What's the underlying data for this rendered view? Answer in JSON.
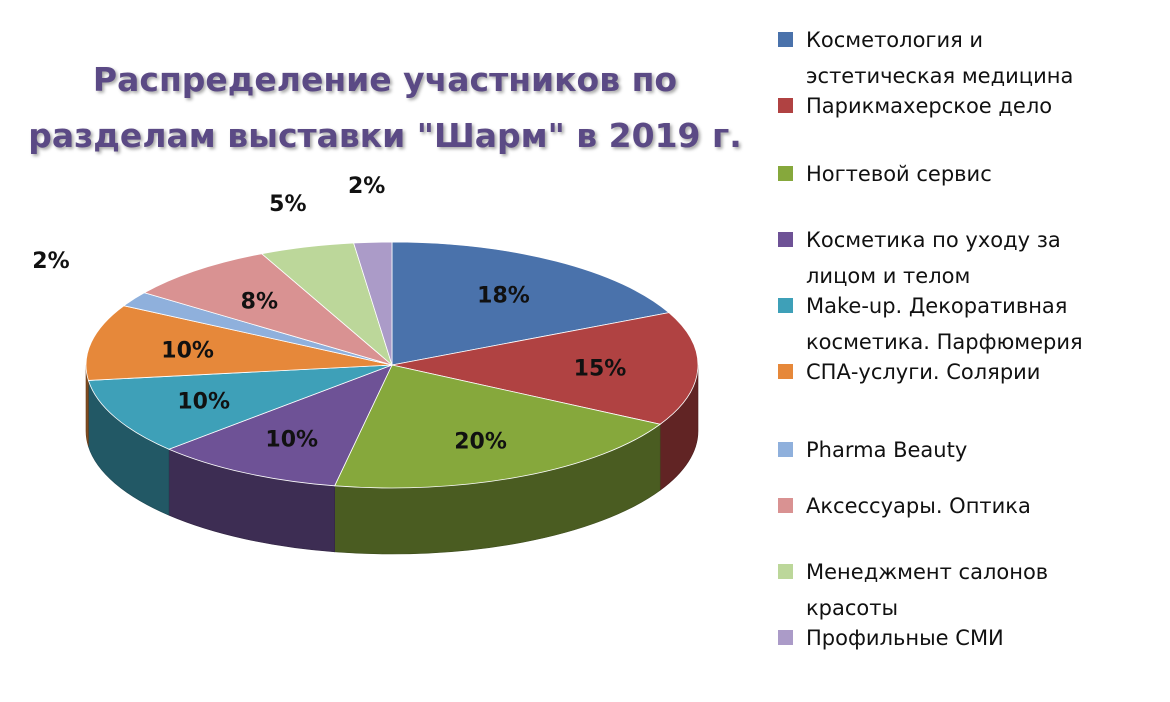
{
  "chart_data": {
    "type": "pie",
    "title": "Распределение участников по разделам выставки \"Шарм\" в 2019 г.",
    "legend_position": "right",
    "three_d": true,
    "slices": [
      {
        "name": "Косметология и\nэстетическая медицина",
        "value": 18,
        "label": "18%",
        "color": "#4a72ab"
      },
      {
        "name": "Парикмахерское дело",
        "value": 15,
        "label": "15%",
        "color": "#b04242"
      },
      {
        "name": "Ногтевой сервис",
        "value": 20,
        "label": "20%",
        "color": "#86a83c"
      },
      {
        "name": "Косметика по уходу за\nлицом и телом",
        "value": 10,
        "label": "10%",
        "color": "#6e5296"
      },
      {
        "name": "Make-up. Декоративная\nкосметика. Парфюмерия",
        "value": 10,
        "label": "10%",
        "color": "#3ea0b8"
      },
      {
        "name": "СПА-услуги. Солярии",
        "value": 10,
        "label": "10%",
        "color": "#e6883a"
      },
      {
        "name": "Pharma Beauty",
        "value": 2,
        "label": "2%",
        "color": "#8fb0dc"
      },
      {
        "name": "Аксессуары. Оптика",
        "value": 8,
        "label": "8%",
        "color": "#d99292"
      },
      {
        "name": "Менеджмент салонов\nкрасоты",
        "value": 5,
        "label": "5%",
        "color": "#bcd79a"
      },
      {
        "name": "Профильные СМИ",
        "value": 2,
        "label": "2%",
        "color": "#ab9bc8"
      }
    ]
  }
}
